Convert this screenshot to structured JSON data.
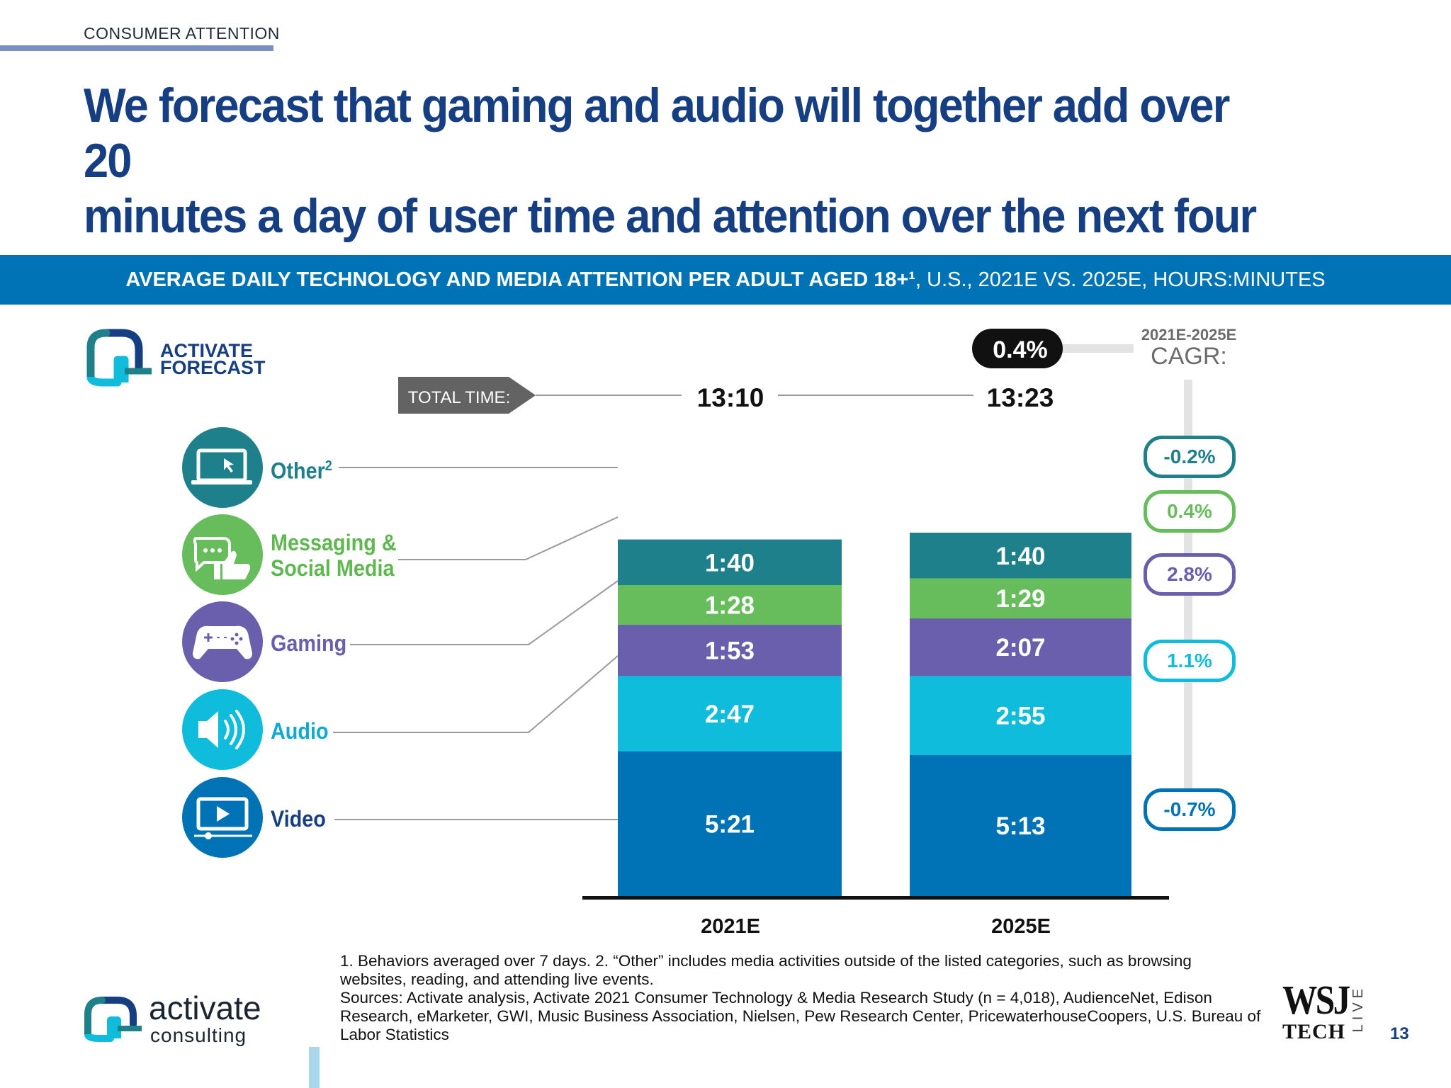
{
  "header": {
    "section": "CONSUMER ATTENTION",
    "headline_line1": "We forecast that gaming and audio will together add over 20",
    "headline_line2": "minutes a day of user time and attention over the next four years"
  },
  "banner": {
    "bold_text": "AVERAGE DAILY TECHNOLOGY AND MEDIA ATTENTION PER ADULT AGED 18+¹",
    "rest_text": ", U.S., 2021E VS. 2025E, HOURS:MINUTES"
  },
  "badge": {
    "line1": "ACTIVATE",
    "line2": "FORECAST"
  },
  "total": {
    "label": "TOTAL TIME:",
    "values": [
      "13:10",
      "13:23"
    ],
    "cagr": "0.4%"
  },
  "cagr_header": {
    "years": "2021E-2025E",
    "label": "CAGR:"
  },
  "colors": {
    "video": "#0073b6",
    "audio": "#10bcdc",
    "gaming": "#6a5fad",
    "messaging": "#67bd5c",
    "other": "#1d808a",
    "category_text_other": "#1d808a",
    "category_text_messaging": "#5fb84f",
    "category_text_gaming": "#6a5fad",
    "category_text_audio": "#10a9d3",
    "category_text_video": "#163e82"
  },
  "chart_data": {
    "type": "bar",
    "stacked": true,
    "unit": "hours:minutes",
    "categories": [
      "2021E",
      "2025E"
    ],
    "series": [
      {
        "name": "Video",
        "icon": "video-player-icon",
        "values": [
          "5:21",
          "5:13"
        ],
        "minutes": [
          321,
          313
        ],
        "cagr": "-0.7%"
      },
      {
        "name": "Audio",
        "icon": "speaker-icon",
        "values": [
          "2:47",
          "2:55"
        ],
        "minutes": [
          167,
          175
        ],
        "cagr": "1.1%"
      },
      {
        "name": "Gaming",
        "icon": "gamepad-icon",
        "values": [
          "1:53",
          "2:07"
        ],
        "minutes": [
          113,
          127
        ],
        "cagr": "2.8%"
      },
      {
        "name_line1": "Messaging &",
        "name_line2": "Social Media",
        "icon": "chat-thumbs-up-icon",
        "values": [
          "1:28",
          "1:29"
        ],
        "minutes": [
          88,
          89
        ],
        "cagr": "0.4%"
      },
      {
        "name": "Other",
        "name_sup": "2",
        "icon": "laptop-cursor-icon",
        "values": [
          "1:40",
          "1:40"
        ],
        "minutes": [
          100,
          100
        ],
        "cagr": "-0.2%"
      }
    ],
    "totals": [
      "13:10",
      "13:23"
    ],
    "total_cagr": "0.4%",
    "legend": "left"
  },
  "footnotes": {
    "line1": "1. Behaviors averaged over 7 days.  2. “Other” includes media activities outside of the listed categories, such as browsing websites, reading, and attending live events.",
    "line2": "Sources: Activate analysis, Activate 2021 Consumer Technology & Media Research Study (n = 4,018), AudienceNet, Edison Research, eMarketer, GWI, Music Business Association, Nielsen, Pew Research Center, PricewaterhouseCoopers, U.S. Bureau of Labor Statistics"
  },
  "brand": {
    "word": "activate",
    "sub": "consulting"
  },
  "wsj": {
    "wordmark": "WSJ",
    "tech": "TECH",
    "live": "LIVE"
  },
  "page": {
    "number": "13"
  }
}
